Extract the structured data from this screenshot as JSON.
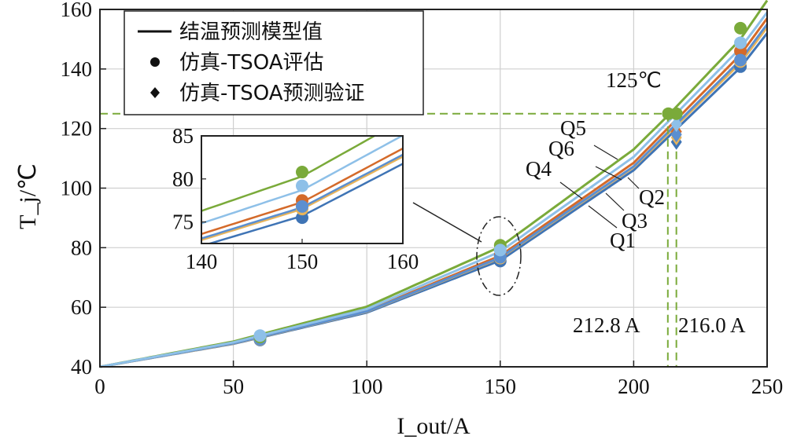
{
  "chart_data": {
    "type": "line",
    "x_label": "I_out/A",
    "y_label": "T_j/℃",
    "x_ticks": [
      "0",
      "50",
      "100",
      "150",
      "200",
      "250"
    ],
    "y_ticks": [
      "40",
      "60",
      "80",
      "100",
      "120",
      "140",
      "160"
    ],
    "xlim": [
      0,
      250
    ],
    "ylim": [
      40,
      160
    ],
    "grid": true,
    "legend": {
      "placement": "top-left",
      "entries": [
        {
          "marker": "line",
          "label": "结温预测模型值"
        },
        {
          "marker": "circle",
          "label": "仿真-TSOA评估"
        },
        {
          "marker": "diamond",
          "label": "仿真-TSOA预测验证"
        }
      ]
    },
    "series": [
      {
        "name": "Q1",
        "color": "#3f74b5",
        "model": {
          "x": [
            0,
            50,
            100,
            150,
            200,
            240,
            250
          ],
          "y": [
            40,
            47.7,
            58.2,
            75.7,
            106,
            140.5,
            152
          ]
        },
        "eval_points": {
          "x": [
            60,
            150,
            240
          ],
          "y": [
            49,
            75.5,
            140.8
          ]
        },
        "verify_point": {
          "x": 216,
          "y": 115.5
        }
      },
      {
        "name": "Q2",
        "color": "#d46a2a",
        "model": {
          "x": [
            0,
            50,
            100,
            150,
            200,
            240,
            250
          ],
          "y": [
            40,
            48,
            58.8,
            77.3,
            108.5,
            144.8,
            157
          ]
        },
        "eval_points": {
          "x": [
            60,
            150,
            240
          ],
          "y": [
            49.5,
            77.5,
            146
          ]
        },
        "verify_point": {
          "x": 216,
          "y": 119
        }
      },
      {
        "name": "Q3",
        "color": "#e8b45a",
        "model": {
          "x": [
            0,
            50,
            100,
            150,
            200,
            240,
            250
          ],
          "y": [
            40,
            47.8,
            58.5,
            76.5,
            107,
            142,
            154
          ]
        },
        "eval_points": {
          "x": [
            60,
            150,
            240
          ],
          "y": [
            49.2,
            76.5,
            142.5
          ]
        },
        "verify_point": {
          "x": 216,
          "y": 117
        }
      },
      {
        "name": "Q4",
        "color": "#5b8fd0",
        "model": {
          "x": [
            0,
            50,
            100,
            150,
            200,
            240,
            250
          ],
          "y": [
            40,
            47.9,
            58.6,
            76.7,
            107.3,
            143,
            155
          ]
        },
        "eval_points": {
          "x": [
            60,
            150,
            240
          ],
          "y": [
            49.3,
            76.8,
            143
          ]
        },
        "verify_point": {
          "x": 216,
          "y": 118
        }
      },
      {
        "name": "Q5",
        "color": "#7aaa3a",
        "model": {
          "x": [
            0,
            50,
            100,
            150,
            200,
            213,
            240,
            250
          ],
          "y": [
            40,
            48.5,
            60.2,
            80.3,
            113,
            124.5,
            150,
            163
          ]
        },
        "eval_points": {
          "x": [
            60,
            150,
            240
          ],
          "y": [
            50,
            80.8,
            153.7
          ]
        },
        "verify_point": {
          "x": 213,
          "y": 125
        }
      },
      {
        "name": "Q6",
        "color": "#8ec0e8",
        "model": {
          "x": [
            0,
            50,
            100,
            150,
            200,
            240,
            250
          ],
          "y": [
            40,
            48.2,
            59.4,
            78.7,
            110.5,
            147,
            159
          ]
        },
        "eval_points": {
          "x": [
            60,
            150,
            240
          ],
          "y": [
            50.5,
            79.2,
            148.8
          ]
        },
        "verify_point": {
          "x": 216,
          "y": 121.5
        }
      }
    ],
    "annotations": {
      "temp_label": "125℃",
      "temp_value": 125,
      "i_label_1": "212.8 A",
      "i_value_1": 212.8,
      "i_label_2": "216.0 A",
      "i_value_2": 216.0
    },
    "inset": {
      "xlim": [
        140,
        160
      ],
      "ylim": [
        72.5,
        85
      ],
      "x_ticks": [
        "140",
        "150",
        "160"
      ],
      "y_ticks": [
        "75",
        "80",
        "85"
      ]
    }
  }
}
